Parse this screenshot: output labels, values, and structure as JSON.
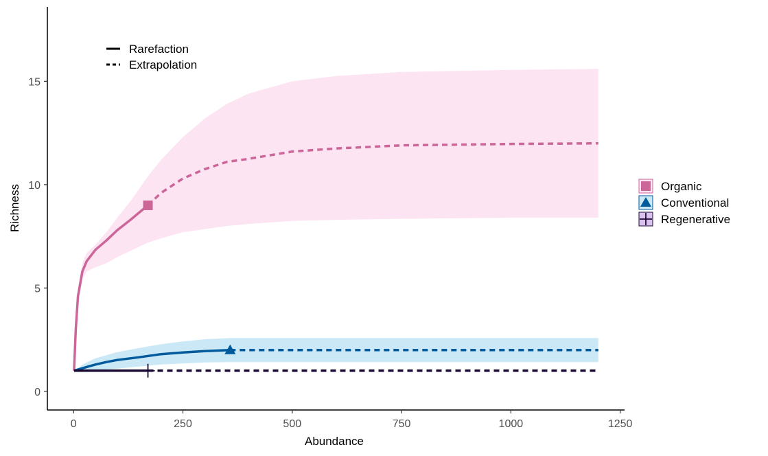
{
  "chart_data": {
    "type": "line",
    "title": "",
    "xlabel": "Abundance",
    "ylabel": "Richness",
    "xlim": [
      -60,
      1260
    ],
    "ylim": [
      -0.9,
      18.6
    ],
    "xticks": [
      0,
      250,
      500,
      750,
      1000,
      1250
    ],
    "yticks": [
      0,
      5,
      10,
      15
    ],
    "xtick_labels": [
      "0",
      "250",
      "500",
      "750",
      "1000",
      "1250"
    ],
    "ytick_labels": [
      "0",
      "5",
      "10",
      "15"
    ],
    "grid": false,
    "linetype_legend": {
      "placement": "top-left",
      "items": [
        {
          "label": "Rarefaction",
          "dash": "solid"
        },
        {
          "label": "Extrapolation",
          "dash": "dashed"
        }
      ]
    },
    "series_legend": {
      "placement": "right"
    },
    "series": [
      {
        "name": "Organic",
        "color": "#CC6699",
        "band_color": "#FCE4F2",
        "marker": "square",
        "observed": {
          "x": 170,
          "y": 9
        },
        "rarefaction": {
          "x": [
            1,
            5,
            10,
            20,
            30,
            50,
            75,
            100,
            130,
            150,
            170
          ],
          "y": [
            1,
            3.0,
            4.6,
            5.8,
            6.3,
            6.85,
            7.3,
            7.8,
            8.3,
            8.65,
            9
          ]
        },
        "extrapolation": {
          "x": [
            170,
            200,
            250,
            300,
            350,
            400,
            500,
            600,
            750,
            1000,
            1200
          ],
          "y": [
            9,
            9.6,
            10.3,
            10.75,
            11.1,
            11.25,
            11.6,
            11.75,
            11.9,
            11.97,
            12
          ]
        },
        "ci": {
          "x": [
            1,
            5,
            10,
            20,
            30,
            50,
            75,
            100,
            130,
            150,
            170,
            200,
            250,
            300,
            350,
            400,
            500,
            600,
            750,
            1000,
            1200
          ],
          "lower": [
            1,
            2.6,
            4.2,
            5.4,
            5.8,
            6.0,
            6.2,
            6.5,
            6.8,
            7.0,
            7.2,
            7.4,
            7.7,
            7.85,
            8.0,
            8.1,
            8.25,
            8.3,
            8.35,
            8.4,
            8.4
          ],
          "upper": [
            1,
            3.4,
            5.0,
            6.2,
            6.7,
            7.1,
            7.7,
            8.4,
            9.2,
            9.8,
            10.4,
            11.2,
            12.3,
            13.2,
            13.9,
            14.4,
            15.0,
            15.25,
            15.45,
            15.55,
            15.6
          ]
        }
      },
      {
        "name": "Conventional",
        "color": "#005A9C",
        "band_color": "#CBE8F6",
        "marker": "triangle",
        "observed": {
          "x": 358,
          "y": 2
        },
        "rarefaction": {
          "x": [
            1,
            25,
            50,
            75,
            100,
            150,
            200,
            250,
            300,
            358
          ],
          "y": [
            1,
            1.15,
            1.3,
            1.42,
            1.52,
            1.65,
            1.8,
            1.88,
            1.95,
            2
          ]
        },
        "extrapolation": {
          "x": [
            358,
            1200
          ],
          "y": [
            2,
            2
          ]
        },
        "ci": {
          "x": [
            1,
            25,
            50,
            100,
            150,
            200,
            250,
            300,
            358,
            400,
            600,
            800,
            1000,
            1200
          ],
          "lower": [
            1,
            1.0,
            1.02,
            1.1,
            1.2,
            1.3,
            1.35,
            1.4,
            1.42,
            1.42,
            1.42,
            1.42,
            1.42,
            1.42
          ],
          "upper": [
            1,
            1.35,
            1.6,
            1.9,
            2.1,
            2.28,
            2.42,
            2.52,
            2.58,
            2.58,
            2.58,
            2.58,
            2.58,
            2.58
          ]
        }
      },
      {
        "name": "Regenerative",
        "color": "#1A0A33",
        "band_color": "#D9C2EE",
        "marker": "cross",
        "observed": {
          "x": 170,
          "y": 1
        },
        "rarefaction": {
          "x": [
            1,
            170
          ],
          "y": [
            1,
            1
          ]
        },
        "extrapolation": {
          "x": [
            170,
            1200
          ],
          "y": [
            1,
            1
          ]
        },
        "ci": {
          "x": [
            1,
            1200
          ],
          "lower": [
            1,
            1
          ],
          "upper": [
            1,
            1
          ]
        }
      }
    ]
  }
}
